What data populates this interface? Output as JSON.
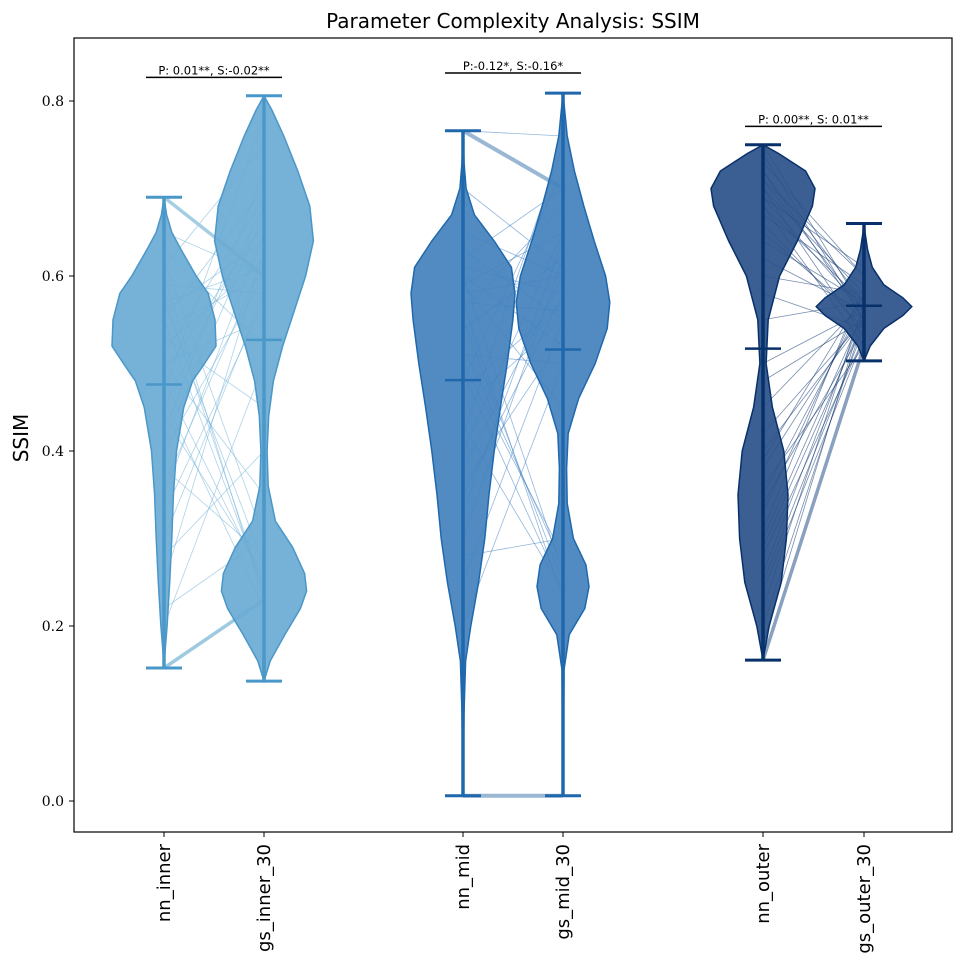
{
  "chart_data": {
    "type": "violin",
    "title": "Parameter Complexity Analysis: SSIM",
    "xlabel": "",
    "ylabel": "SSIM",
    "ylim": [
      -0.035,
      0.87
    ],
    "yticks": [
      0.0,
      0.2,
      0.4,
      0.6,
      0.8
    ],
    "ytick_labels": [
      "0.0",
      "0.2",
      "0.4",
      "0.6",
      "0.8"
    ],
    "groups": [
      {
        "name": "inner",
        "color": "#4a97c9",
        "fill": "#6aaad4",
        "pair_line_color": "#6baed6",
        "annotation": "P: 0.01**, S:-0.02**",
        "annotation_y": 0.827,
        "violins": [
          {
            "label": "nn_inner",
            "min": 0.152,
            "max": 0.69,
            "mean": 0.476,
            "density": [
              [
                0.152,
                0.0
              ],
              [
                0.17,
                0.02
              ],
              [
                0.2,
                0.06
              ],
              [
                0.25,
                0.11
              ],
              [
                0.3,
                0.15
              ],
              [
                0.35,
                0.18
              ],
              [
                0.4,
                0.24
              ],
              [
                0.45,
                0.38
              ],
              [
                0.48,
                0.55
              ],
              [
                0.5,
                0.78
              ],
              [
                0.52,
                1.0
              ],
              [
                0.55,
                0.98
              ],
              [
                0.58,
                0.85
              ],
              [
                0.6,
                0.62
              ],
              [
                0.63,
                0.33
              ],
              [
                0.65,
                0.15
              ],
              [
                0.67,
                0.05
              ],
              [
                0.69,
                0.0
              ]
            ]
          },
          {
            "label": "gs_inner_30",
            "min": 0.137,
            "max": 0.806,
            "mean": 0.527,
            "density": [
              [
                0.137,
                0.0
              ],
              [
                0.16,
                0.12
              ],
              [
                0.19,
                0.4
              ],
              [
                0.22,
                0.7
              ],
              [
                0.24,
                0.82
              ],
              [
                0.26,
                0.78
              ],
              [
                0.29,
                0.55
              ],
              [
                0.32,
                0.22
              ],
              [
                0.36,
                0.08
              ],
              [
                0.4,
                0.06
              ],
              [
                0.44,
                0.09
              ],
              [
                0.48,
                0.18
              ],
              [
                0.52,
                0.36
              ],
              [
                0.56,
                0.58
              ],
              [
                0.6,
                0.8
              ],
              [
                0.64,
                0.95
              ],
              [
                0.68,
                0.88
              ],
              [
                0.72,
                0.65
              ],
              [
                0.76,
                0.38
              ],
              [
                0.79,
                0.15
              ],
              [
                0.806,
                0.0
              ]
            ]
          }
        ]
      },
      {
        "name": "mid",
        "color": "#1f68ad",
        "fill": "#4381bd",
        "pair_line_color": "#3a7bbf",
        "annotation": "P:-0.12*, S:-0.16*",
        "annotation_y": 0.832,
        "violins": [
          {
            "label": "nn_mid",
            "min": 0.006,
            "max": 0.766,
            "mean": 0.481,
            "density": [
              [
                0.006,
                0.0
              ],
              [
                0.1,
                0.02
              ],
              [
                0.16,
                0.05
              ],
              [
                0.2,
                0.15
              ],
              [
                0.25,
                0.3
              ],
              [
                0.3,
                0.42
              ],
              [
                0.35,
                0.5
              ],
              [
                0.4,
                0.6
              ],
              [
                0.45,
                0.72
              ],
              [
                0.5,
                0.85
              ],
              [
                0.55,
                0.96
              ],
              [
                0.58,
                1.0
              ],
              [
                0.61,
                0.93
              ],
              [
                0.64,
                0.6
              ],
              [
                0.67,
                0.22
              ],
              [
                0.7,
                0.06
              ],
              [
                0.73,
                0.02
              ],
              [
                0.766,
                0.0
              ]
            ]
          },
          {
            "label": "gs_mid_30",
            "min": 0.006,
            "max": 0.809,
            "mean": 0.516,
            "density": [
              [
                0.006,
                0.0
              ],
              [
                0.15,
                0.02
              ],
              [
                0.19,
                0.12
              ],
              [
                0.22,
                0.42
              ],
              [
                0.245,
                0.5
              ],
              [
                0.27,
                0.44
              ],
              [
                0.3,
                0.2
              ],
              [
                0.34,
                0.08
              ],
              [
                0.38,
                0.07
              ],
              [
                0.42,
                0.1
              ],
              [
                0.46,
                0.3
              ],
              [
                0.5,
                0.62
              ],
              [
                0.54,
                0.85
              ],
              [
                0.57,
                0.9
              ],
              [
                0.6,
                0.82
              ],
              [
                0.64,
                0.6
              ],
              [
                0.68,
                0.4
              ],
              [
                0.72,
                0.22
              ],
              [
                0.76,
                0.08
              ],
              [
                0.809,
                0.0
              ]
            ]
          }
        ]
      },
      {
        "name": "outer",
        "color": "#08306b",
        "fill": "#2a5189",
        "pair_line_color": "#08306b",
        "annotation": "P: 0.00**, S: 0.01**",
        "annotation_y": 0.771,
        "violins": [
          {
            "label": "nn_outer",
            "min": 0.161,
            "max": 0.75,
            "mean": 0.517,
            "density": [
              [
                0.161,
                0.0
              ],
              [
                0.2,
                0.12
              ],
              [
                0.25,
                0.35
              ],
              [
                0.3,
                0.45
              ],
              [
                0.35,
                0.48
              ],
              [
                0.4,
                0.4
              ],
              [
                0.45,
                0.18
              ],
              [
                0.5,
                0.06
              ],
              [
                0.55,
                0.1
              ],
              [
                0.6,
                0.32
              ],
              [
                0.64,
                0.66
              ],
              [
                0.68,
                0.95
              ],
              [
                0.7,
                1.0
              ],
              [
                0.72,
                0.82
              ],
              [
                0.74,
                0.3
              ],
              [
                0.75,
                0.0
              ]
            ]
          },
          {
            "label": "gs_outer_30",
            "min": 0.503,
            "max": 0.66,
            "mean": 0.566,
            "density": [
              [
                0.503,
                0.0
              ],
              [
                0.52,
                0.12
              ],
              [
                0.54,
                0.38
              ],
              [
                0.555,
                0.75
              ],
              [
                0.565,
                0.92
              ],
              [
                0.575,
                0.75
              ],
              [
                0.59,
                0.38
              ],
              [
                0.61,
                0.16
              ],
              [
                0.63,
                0.07
              ],
              [
                0.65,
                0.02
              ],
              [
                0.66,
                0.0
              ]
            ]
          }
        ]
      }
    ],
    "pair_lines": {
      "inner": [
        [
          0.52,
          0.62
        ],
        [
          0.48,
          0.25
        ],
        [
          0.55,
          0.7
        ],
        [
          0.4,
          0.6
        ],
        [
          0.6,
          0.23
        ],
        [
          0.35,
          0.65
        ],
        [
          0.5,
          0.55
        ],
        [
          0.62,
          0.3
        ],
        [
          0.3,
          0.58
        ],
        [
          0.45,
          0.68
        ],
        [
          0.57,
          0.27
        ],
        [
          0.25,
          0.63
        ],
        [
          0.53,
          0.45
        ],
        [
          0.42,
          0.72
        ],
        [
          0.65,
          0.6
        ],
        [
          0.2,
          0.5
        ],
        [
          0.58,
          0.24
        ],
        [
          0.49,
          0.66
        ],
        [
          0.38,
          0.28
        ],
        [
          0.54,
          0.6
        ],
        [
          0.61,
          0.75
        ],
        [
          0.33,
          0.57
        ],
        [
          0.46,
          0.22
        ],
        [
          0.56,
          0.64
        ],
        [
          0.28,
          0.4
        ],
        [
          0.51,
          0.69
        ],
        [
          0.44,
          0.26
        ],
        [
          0.59,
          0.58
        ],
        [
          0.36,
          0.62
        ],
        [
          0.47,
          0.78
        ],
        [
          0.63,
          0.52
        ],
        [
          0.22,
          0.3
        ],
        [
          0.5,
          0.35
        ],
        [
          0.55,
          0.24
        ],
        [
          0.41,
          0.67
        ],
        [
          0.57,
          0.61
        ],
        [
          0.69,
          0.6
        ],
        [
          0.152,
          0.23
        ]
      ],
      "mid": [
        [
          0.58,
          0.6
        ],
        [
          0.55,
          0.25
        ],
        [
          0.62,
          0.7
        ],
        [
          0.45,
          0.55
        ],
        [
          0.5,
          0.28
        ],
        [
          0.35,
          0.58
        ],
        [
          0.6,
          0.52
        ],
        [
          0.4,
          0.65
        ],
        [
          0.25,
          0.55
        ],
        [
          0.57,
          0.23
        ],
        [
          0.3,
          0.62
        ],
        [
          0.48,
          0.72
        ],
        [
          0.59,
          0.45
        ],
        [
          0.52,
          0.27
        ],
        [
          0.2,
          0.5
        ],
        [
          0.61,
          0.58
        ],
        [
          0.43,
          0.24
        ],
        [
          0.56,
          0.68
        ],
        [
          0.38,
          0.6
        ],
        [
          0.63,
          0.55
        ],
        [
          0.28,
          0.3
        ],
        [
          0.54,
          0.62
        ],
        [
          0.47,
          0.57
        ],
        [
          0.6,
          0.26
        ],
        [
          0.33,
          0.64
        ],
        [
          0.51,
          0.5
        ],
        [
          0.65,
          0.6
        ],
        [
          0.42,
          0.75
        ],
        [
          0.57,
          0.56
        ],
        [
          0.7,
          0.61
        ],
        [
          0.766,
          0.76
        ],
        [
          0.49,
          0.24
        ],
        [
          0.59,
          0.65
        ],
        [
          0.36,
          0.53
        ]
      ],
      "outer": [
        [
          0.69,
          0.56
        ],
        [
          0.7,
          0.58
        ],
        [
          0.72,
          0.55
        ],
        [
          0.68,
          0.57
        ],
        [
          0.66,
          0.54
        ],
        [
          0.73,
          0.6
        ],
        [
          0.71,
          0.56
        ],
        [
          0.64,
          0.57
        ],
        [
          0.74,
          0.55
        ],
        [
          0.67,
          0.59
        ],
        [
          0.7,
          0.53
        ],
        [
          0.62,
          0.56
        ],
        [
          0.69,
          0.61
        ],
        [
          0.72,
          0.57
        ],
        [
          0.65,
          0.55
        ],
        [
          0.6,
          0.58
        ],
        [
          0.68,
          0.52
        ],
        [
          0.71,
          0.6
        ],
        [
          0.75,
          0.56
        ],
        [
          0.58,
          0.54
        ],
        [
          0.4,
          0.55
        ],
        [
          0.35,
          0.57
        ],
        [
          0.3,
          0.56
        ],
        [
          0.25,
          0.54
        ],
        [
          0.2,
          0.55
        ],
        [
          0.33,
          0.58
        ],
        [
          0.28,
          0.53
        ],
        [
          0.38,
          0.56
        ],
        [
          0.22,
          0.57
        ],
        [
          0.42,
          0.55
        ],
        [
          0.36,
          0.52
        ],
        [
          0.31,
          0.59
        ],
        [
          0.26,
          0.56
        ],
        [
          0.45,
          0.57
        ],
        [
          0.34,
          0.54
        ],
        [
          0.29,
          0.55
        ],
        [
          0.39,
          0.58
        ],
        [
          0.24,
          0.53
        ],
        [
          0.18,
          0.56
        ],
        [
          0.161,
          0.52
        ],
        [
          0.5,
          0.56
        ],
        [
          0.55,
          0.57
        ],
        [
          0.48,
          0.55
        ]
      ]
    }
  }
}
